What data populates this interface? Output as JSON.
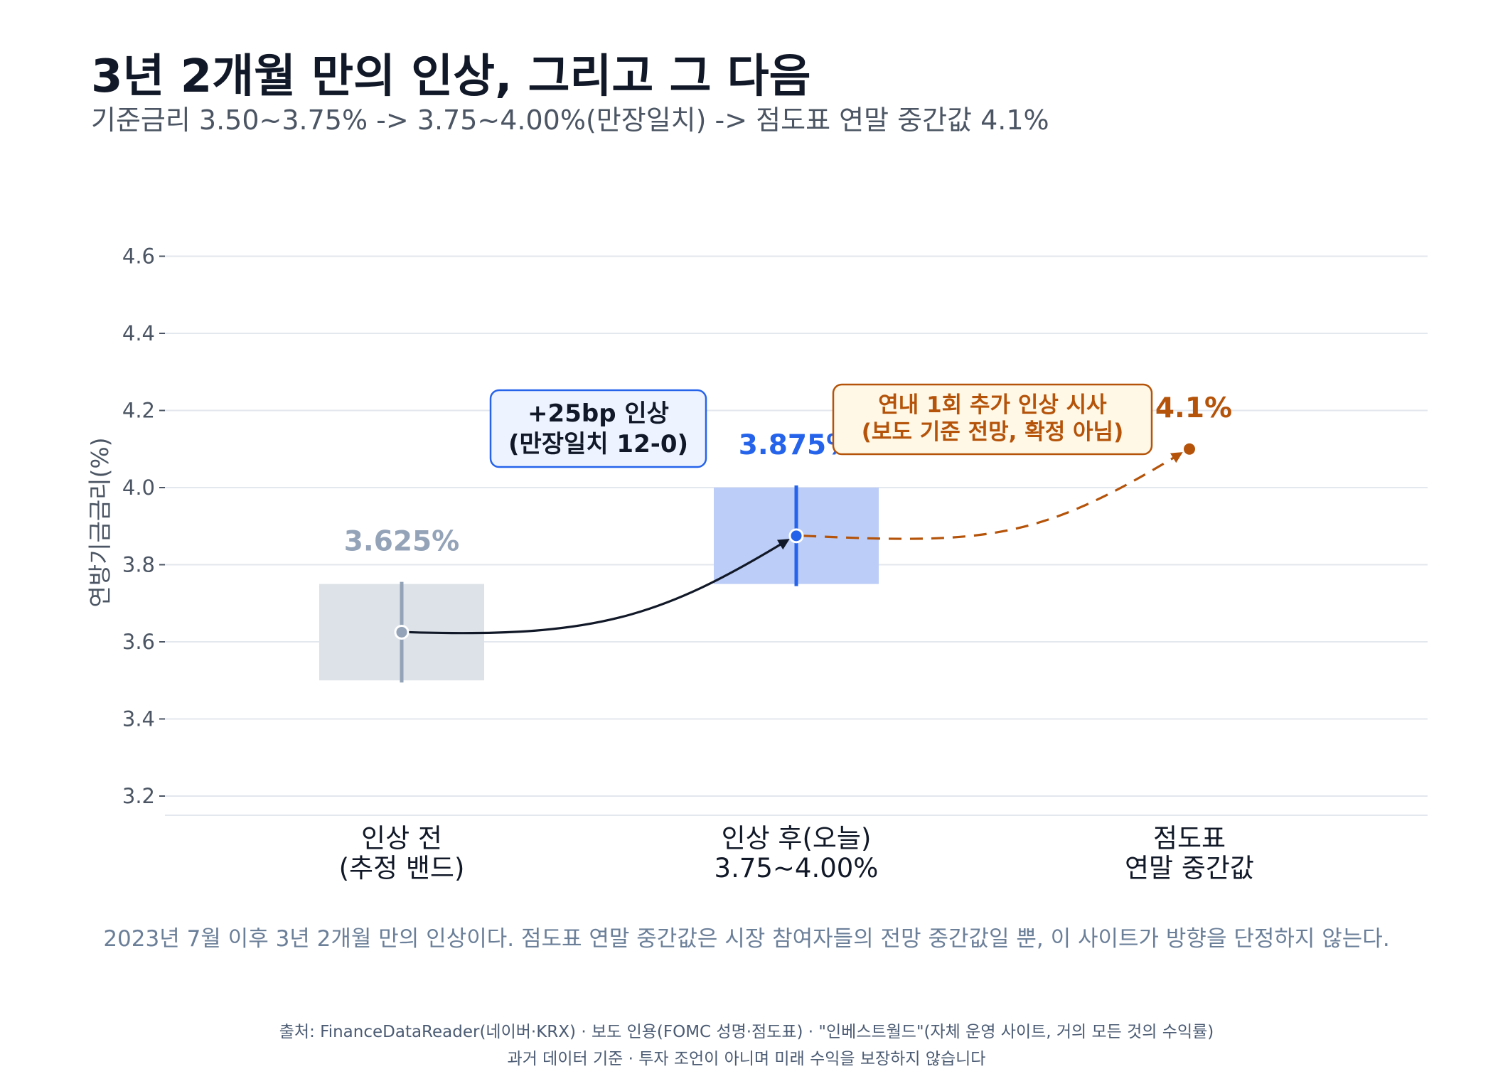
{
  "header": {
    "title": "3년 2개월 만의 인상, 그리고 그 다음",
    "subtitle": "기준금리 3.50~3.75% -> 3.75~4.00%(만장일치) -> 점도표 연말 중간값 4.1%"
  },
  "chart_data": {
    "type": "range-dot",
    "ylabel": "연방기금금리(%)",
    "ylim": [
      3.15,
      4.65
    ],
    "yticks": [
      3.2,
      3.4,
      3.6,
      3.8,
      4.0,
      4.2,
      4.4,
      4.6
    ],
    "grid": true,
    "categories": [
      {
        "line1": "인상 전",
        "line2": "(추정 밴드)"
      },
      {
        "line1": "인상 후(오늘)",
        "line2": "3.75~4.00%"
      },
      {
        "line1": "점도표",
        "line2": "연말 중간값"
      }
    ],
    "points": [
      {
        "label": "3.625%",
        "value": 3.625,
        "band_low": 3.5,
        "band_high": 3.75,
        "color": "#94a3b8",
        "band_color": "#dde2e8"
      },
      {
        "label": "3.875%",
        "value": 3.875,
        "band_low": 3.75,
        "band_high": 4.0,
        "color": "#2563eb",
        "band_color": "#bccdf7"
      },
      {
        "label": "4.1%",
        "value": 4.1,
        "color": "#b45309"
      }
    ],
    "annotations": [
      {
        "line1": "+25bp 인상",
        "line2": "(만장일치 12-0)",
        "color": "#2563eb",
        "fill": "#eef4ff",
        "text_color": "#111827"
      },
      {
        "line1": "연내 1회 추가 인상 시사",
        "line2": "(보도 기준 전망, 확정 아님)",
        "color": "#b45309",
        "fill": "#fff8e7",
        "text_color": "#b45309"
      }
    ],
    "arrows": [
      {
        "from": 0,
        "to": 1,
        "style": "solid",
        "color": "#111827"
      },
      {
        "from": 1,
        "to": 2,
        "style": "dashed",
        "color": "#b45309"
      }
    ]
  },
  "footnote": "2023년 7월 이후 3년 2개월 만의 인상이다. 점도표 연말 중간값은 시장 참여자들의 전망 중간값일 뿐, 이 사이트가 방향을 단정하지 않는다.",
  "source": "출처: FinanceDataReader(네이버·KRX) · 보도 인용(FOMC 성명·점도표) · \"인베스트월드\"(자체 운영 사이트, 거의 모든 것의 수익률)",
  "disclaimer": "과거 데이터 기준 · 투자 조언이 아니며 미래 수익을 보장하지 않습니다"
}
